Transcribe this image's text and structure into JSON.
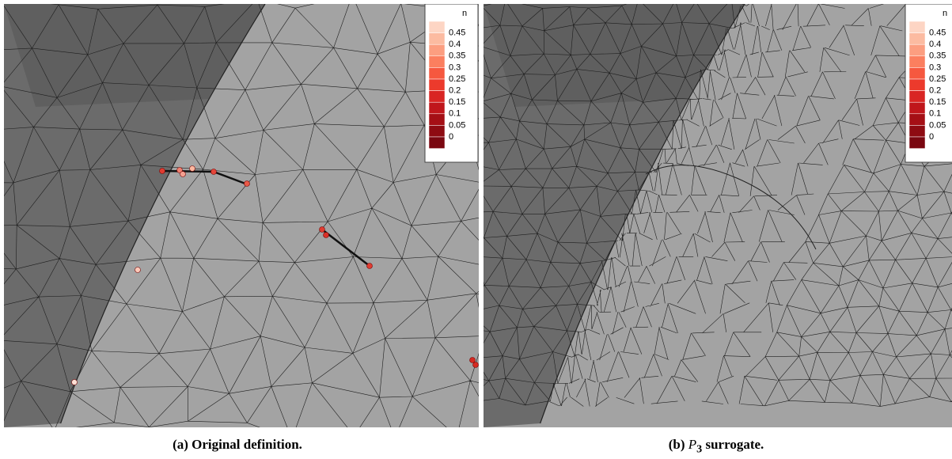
{
  "panels": [
    {
      "legend": {
        "title": "n",
        "labels": [
          "0.45",
          "0.4",
          "0.35",
          "0.3",
          "0.25",
          "0.2",
          "0.15",
          "0.1",
          "0.05",
          "0"
        ]
      },
      "caption": {
        "label": "(a)",
        "text": "Original definition."
      }
    },
    {
      "legend": {
        "title": "n",
        "labels": [
          "0.45",
          "0.4",
          "0.35",
          "0.3",
          "0.25",
          "0.2",
          "0.15",
          "0.1",
          "0.05",
          "0"
        ]
      },
      "caption": {
        "label": "(b)",
        "math": "P",
        "subscript": "3",
        "text": "surrogate."
      }
    }
  ]
}
